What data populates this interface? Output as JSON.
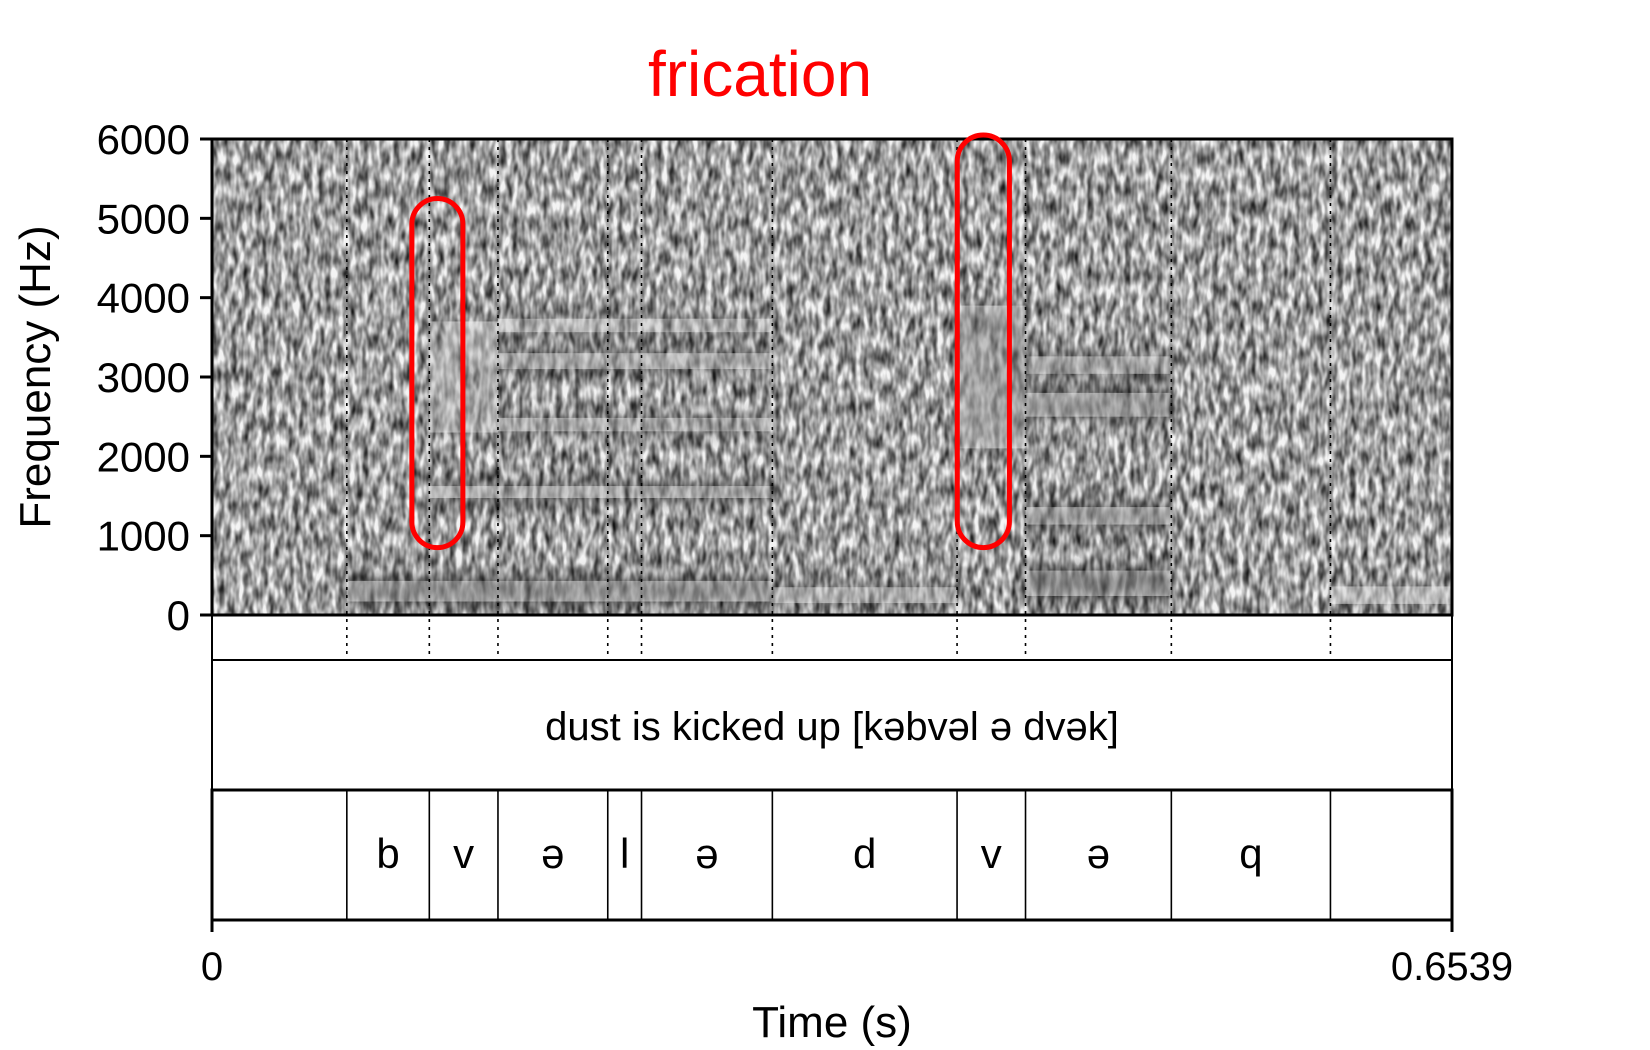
{
  "chart_data": {
    "type": "heatmap",
    "title": "",
    "annotation_label": "frication",
    "annotation_color": "#ff0000",
    "xlabel": "Time (s)",
    "ylabel": "Frequency (Hz)",
    "xlim": [
      0,
      0.6539
    ],
    "ylim": [
      0,
      6000
    ],
    "x_tick_labels": [
      "0",
      "0.6539"
    ],
    "y_ticks": [
      0,
      1000,
      2000,
      3000,
      4000,
      5000,
      6000
    ],
    "y_tick_labels": [
      "0",
      "1000",
      "2000",
      "3000",
      "4000",
      "5000",
      "6000"
    ],
    "utterance_tier_text": "dust is kicked up [kəbvəl ə dvək]",
    "boundaries": [
      0.0711,
      0.1146,
      0.1508,
      0.2087,
      0.2265,
      0.2955,
      0.3929,
      0.429,
      0.5059,
      0.5898
    ],
    "segments": [
      {
        "label": "",
        "start": 0,
        "end": 0.0711
      },
      {
        "label": "b",
        "start": 0.0711,
        "end": 0.1146
      },
      {
        "label": "v",
        "start": 0.1146,
        "end": 0.1508
      },
      {
        "label": "ə",
        "start": 0.1508,
        "end": 0.2087
      },
      {
        "label": "l",
        "start": 0.2087,
        "end": 0.2265
      },
      {
        "label": "ə",
        "start": 0.2265,
        "end": 0.2955
      },
      {
        "label": "d",
        "start": 0.2955,
        "end": 0.3929
      },
      {
        "label": "v",
        "start": 0.3929,
        "end": 0.429
      },
      {
        "label": "ə",
        "start": 0.429,
        "end": 0.5059
      },
      {
        "label": "q",
        "start": 0.5059,
        "end": 0.5898
      },
      {
        "label": "",
        "start": 0.5898,
        "end": 0.6539
      }
    ],
    "frication_regions": [
      {
        "t_start": 0.1054,
        "t_end": 0.1323,
        "f_low": 850,
        "f_high": 5250
      },
      {
        "t_start": 0.393,
        "t_end": 0.4205,
        "f_low": 850,
        "f_high": 6050
      }
    ],
    "energy_bands": [
      {
        "t_start": 0.0711,
        "t_end": 0.2955,
        "f_center": 300,
        "f_width": 260,
        "intensity": 0.8
      },
      {
        "t_start": 0.1146,
        "t_end": 0.2955,
        "f_center": 1550,
        "f_width": 150,
        "intensity": 0.75
      },
      {
        "t_start": 0.1508,
        "t_end": 0.2955,
        "f_center": 2400,
        "f_width": 170,
        "intensity": 0.55
      },
      {
        "t_start": 0.1508,
        "t_end": 0.2955,
        "f_center": 3200,
        "f_width": 200,
        "intensity": 0.55
      },
      {
        "t_start": 0.1508,
        "t_end": 0.2955,
        "f_center": 3650,
        "f_width": 170,
        "intensity": 0.45
      },
      {
        "t_start": 0.2955,
        "t_end": 0.3929,
        "f_center": 250,
        "f_width": 200,
        "intensity": 0.5
      },
      {
        "t_start": 0.429,
        "t_end": 0.5059,
        "f_center": 400,
        "f_width": 320,
        "intensity": 0.8
      },
      {
        "t_start": 0.429,
        "t_end": 0.5059,
        "f_center": 1250,
        "f_width": 220,
        "intensity": 0.75
      },
      {
        "t_start": 0.429,
        "t_end": 0.5059,
        "f_center": 2650,
        "f_width": 300,
        "intensity": 0.65
      },
      {
        "t_start": 0.429,
        "t_end": 0.5059,
        "f_center": 3150,
        "f_width": 220,
        "intensity": 0.55
      },
      {
        "t_start": 0.3929,
        "t_end": 0.429,
        "f_center": 3000,
        "f_width": 1800,
        "intensity": 0.4
      },
      {
        "t_start": 0.1146,
        "t_end": 0.1508,
        "f_center": 3000,
        "f_width": 1400,
        "intensity": 0.25
      },
      {
        "t_start": 0.5898,
        "t_end": 0.6539,
        "f_center": 250,
        "f_width": 220,
        "intensity": 0.3
      }
    ]
  }
}
